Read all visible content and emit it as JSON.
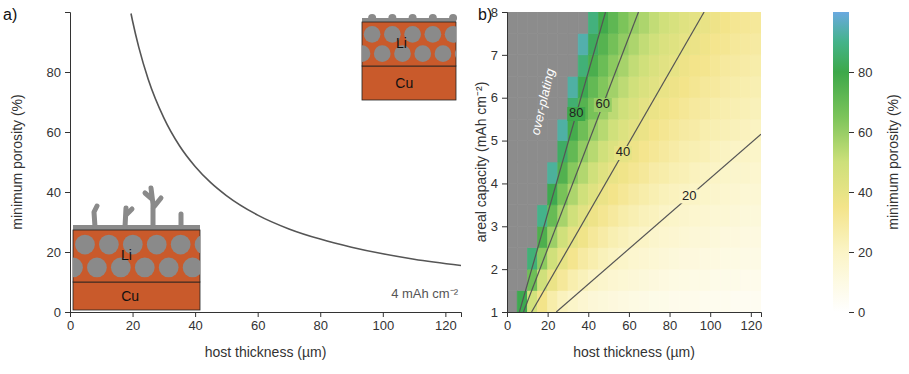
{
  "chart_data": [
    {
      "type": "line",
      "panel_label": "a)",
      "x_label": "host thickness (µm)",
      "y_label": "minimum porosity (%)",
      "xlim": [
        0,
        125
      ],
      "ylim": [
        0,
        100
      ],
      "xticks": [
        0,
        20,
        40,
        60,
        80,
        100,
        120
      ],
      "yticks": [
        0,
        20,
        40,
        60,
        80
      ],
      "series": [
        {
          "name": "4 mAh cm⁻²",
          "color": "#555555",
          "x": [
            19.5,
            20,
            22,
            25,
            30,
            35,
            40,
            45,
            50,
            60,
            70,
            80,
            90,
            100,
            110,
            125
          ],
          "values": [
            99.5,
            97,
            88.2,
            77.6,
            64.7,
            55.4,
            48.5,
            43.1,
            38.8,
            32.3,
            27.7,
            24.3,
            21.6,
            19.4,
            17.6,
            15.5
          ]
        }
      ],
      "insets": [
        {
          "host_label": "Li",
          "substrate_label": "Cu"
        },
        {
          "host_label": "Li",
          "substrate_label": "Cu"
        }
      ]
    },
    {
      "type": "heatmap",
      "panel_label": "b)",
      "x_label": "host thickness (µm)",
      "y_label": "areal capacity (mAh cm⁻²)",
      "xlim": [
        0,
        125
      ],
      "ylim": [
        1,
        8
      ],
      "xticks": [
        0,
        20,
        40,
        60,
        80,
        100,
        120
      ],
      "yticks": [
        1,
        2,
        3,
        4,
        5,
        6,
        7,
        8
      ],
      "annotation": "over-plating",
      "cells": {
        "x_edges": [
          0,
          5,
          10,
          15,
          20,
          25,
          30,
          35,
          40,
          45,
          50,
          55,
          60,
          65,
          70,
          75,
          80,
          85,
          90,
          95,
          100,
          105,
          110,
          115,
          120,
          125
        ],
        "y_edges": [
          1,
          1.5,
          2,
          2.5,
          3,
          3.5,
          4,
          4.5,
          5,
          5.5,
          6,
          6.5,
          7,
          7.5,
          8
        ],
        "values": [
          [
            null,
            81,
            48,
            35,
            27,
            22,
            19,
            16,
            14,
            13,
            12,
            11,
            10,
            9,
            8,
            8,
            7,
            7,
            7,
            6,
            6,
            6,
            5,
            5,
            5
          ],
          [
            null,
            null,
            68,
            49,
            38,
            31,
            26,
            23,
            20,
            18,
            16,
            15,
            14,
            13,
            12,
            11,
            10,
            10,
            9,
            9,
            8,
            8,
            8,
            7,
            7
          ],
          [
            null,
            null,
            87,
            62,
            49,
            40,
            34,
            29,
            26,
            23,
            21,
            19,
            17,
            16,
            15,
            14,
            13,
            12,
            12,
            11,
            11,
            10,
            10,
            9,
            9
          ],
          [
            null,
            null,
            null,
            76,
            59,
            49,
            41,
            36,
            31,
            28,
            25,
            23,
            21,
            20,
            18,
            17,
            16,
            15,
            14,
            14,
            13,
            12,
            12,
            11,
            11
          ],
          [
            null,
            null,
            null,
            90,
            70,
            57,
            49,
            42,
            37,
            33,
            30,
            27,
            25,
            23,
            22,
            20,
            19,
            18,
            17,
            16,
            15,
            15,
            14,
            13,
            13
          ],
          [
            null,
            null,
            null,
            null,
            81,
            66,
            56,
            49,
            43,
            38,
            35,
            32,
            29,
            27,
            25,
            23,
            22,
            21,
            20,
            19,
            18,
            17,
            16,
            15,
            15
          ],
          [
            null,
            null,
            null,
            null,
            92,
            75,
            63,
            55,
            49,
            43,
            39,
            36,
            33,
            31,
            28,
            27,
            25,
            24,
            22,
            21,
            20,
            19,
            18,
            18,
            17
          ],
          [
            null,
            null,
            null,
            null,
            null,
            84,
            71,
            61,
            54,
            49,
            44,
            40,
            37,
            34,
            32,
            30,
            28,
            26,
            25,
            24,
            22,
            21,
            20,
            20,
            19
          ],
          [
            null,
            null,
            null,
            null,
            null,
            93,
            78,
            68,
            60,
            54,
            49,
            44,
            41,
            38,
            35,
            33,
            31,
            29,
            28,
            26,
            25,
            24,
            23,
            22,
            21
          ],
          [
            null,
            null,
            null,
            null,
            null,
            null,
            86,
            74,
            66,
            59,
            53,
            49,
            45,
            41,
            38,
            36,
            34,
            32,
            30,
            29,
            27,
            26,
            25,
            24,
            23
          ],
          [
            null,
            null,
            null,
            null,
            null,
            null,
            93,
            81,
            71,
            64,
            58,
            53,
            49,
            45,
            42,
            39,
            37,
            35,
            33,
            31,
            30,
            28,
            27,
            26,
            25
          ],
          [
            null,
            null,
            null,
            null,
            null,
            null,
            null,
            87,
            77,
            69,
            62,
            57,
            52,
            49,
            45,
            42,
            40,
            37,
            35,
            34,
            32,
            30,
            29,
            28,
            27
          ],
          [
            null,
            null,
            null,
            null,
            null,
            null,
            null,
            94,
            83,
            74,
            67,
            61,
            56,
            52,
            49,
            45,
            43,
            40,
            38,
            36,
            34,
            33,
            31,
            30,
            29
          ],
          [
            null,
            null,
            null,
            null,
            null,
            null,
            null,
            null,
            88,
            79,
            72,
            65,
            60,
            56,
            52,
            49,
            46,
            43,
            41,
            39,
            37,
            35,
            33,
            32,
            31
          ]
        ]
      },
      "contours": [
        {
          "level": 20,
          "x": [
            24.25,
            125
          ],
          "y": [
            1,
            5.15
          ]
        },
        {
          "level": 40,
          "x": [
            12.1,
            97
          ],
          "y": [
            1,
            8
          ]
        },
        {
          "level": 60,
          "x": [
            8.1,
            64.7
          ],
          "y": [
            1,
            8
          ]
        },
        {
          "level": 80,
          "x": [
            6.1,
            48.5
          ],
          "y": [
            1,
            8
          ]
        }
      ],
      "colorbar": {
        "title": "minimum porosity (%)",
        "range": [
          0,
          100
        ],
        "ticks": [
          0,
          20,
          40,
          60,
          80
        ]
      }
    }
  ]
}
